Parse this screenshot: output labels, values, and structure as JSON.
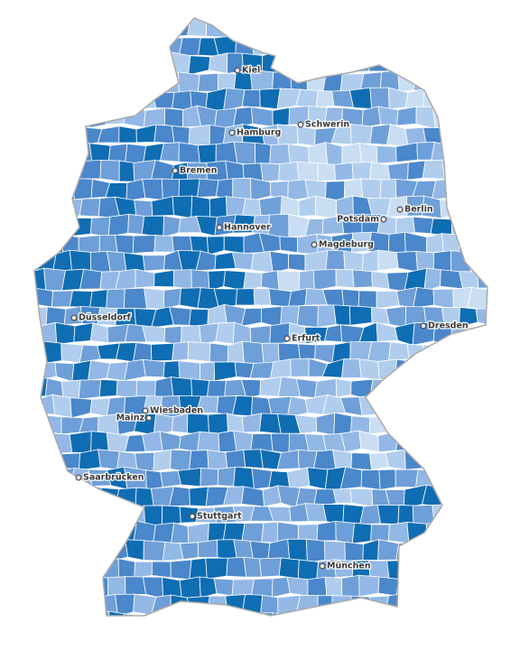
{
  "cities": [
    "Kiel",
    "Hamburg",
    "Schwerin",
    "Bremen",
    "Berlin",
    "Potsdam",
    "Hannover",
    "Magdeburg",
    "Düsseldorf",
    "Dresden",
    "Erfurt",
    "Wiesbaden",
    "Mainz",
    "Saarbrücken",
    "Stuttgart",
    "München"
  ]
}
